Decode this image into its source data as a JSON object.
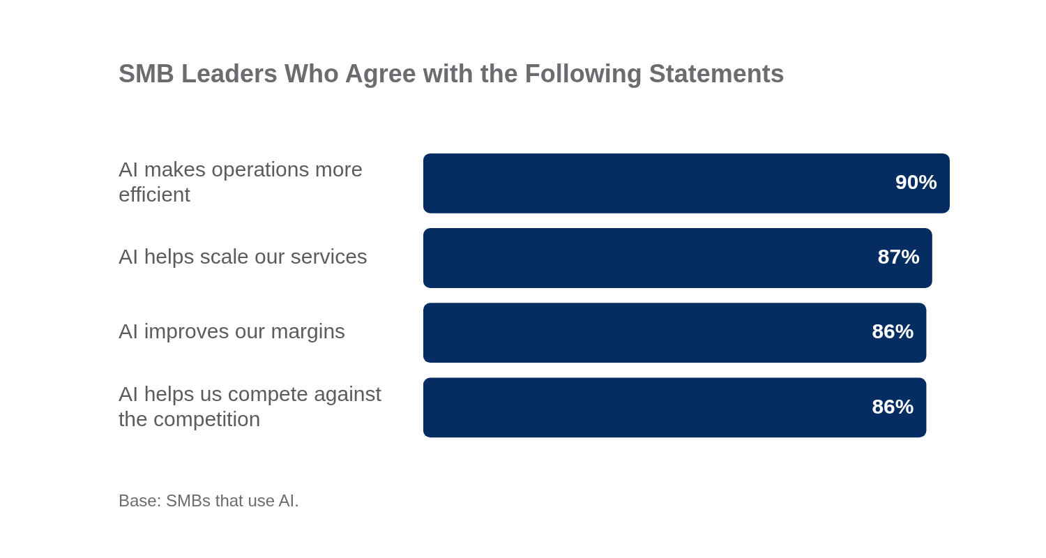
{
  "chart_data": {
    "type": "bar",
    "orientation": "horizontal",
    "title": "SMB Leaders Who Agree with the Following Statements",
    "categories": [
      "AI makes operations more efficient",
      "AI helps scale our services",
      "AI improves our margins",
      "AI helps us compete against the competition"
    ],
    "values": [
      90,
      87,
      86,
      86
    ],
    "color": "#052d61",
    "xlim": [
      0,
      90
    ],
    "tick_labels": "y",
    "legend": false,
    "value_labels": [
      "90%",
      "87%",
      "86%",
      "86%"
    ],
    "annotations": [
      "Base: SMBs that use AI."
    ]
  }
}
